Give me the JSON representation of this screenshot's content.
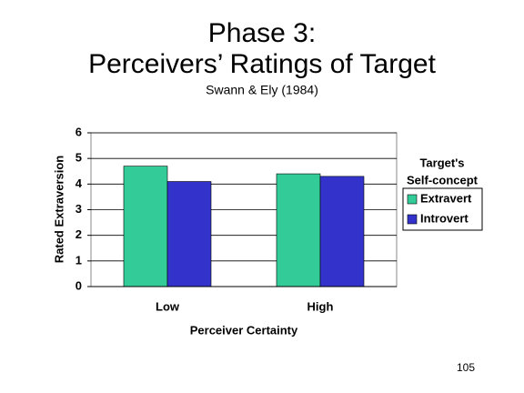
{
  "chart_data": {
    "type": "bar",
    "title": [
      "Phase 3:",
      "Perceivers’ Ratings of Target"
    ],
    "subtitle": "Swann & Ely (1984)",
    "x_label": "Perceiver Certainty",
    "y_label": "Rated Extraversion",
    "categories": [
      "Low",
      "High"
    ],
    "series": [
      {
        "name": "Extravert",
        "color": "#33cc99",
        "values": [
          4.7,
          4.4
        ]
      },
      {
        "name": "Introvert",
        "color": "#3333cc",
        "values": [
          4.1,
          4.3
        ]
      }
    ],
    "ylim": [
      0,
      6
    ],
    "yticks": [
      0,
      1,
      2,
      3,
      4,
      5,
      6
    ],
    "grid": true,
    "legend_title": [
      "Target's",
      "Self-concept"
    ],
    "legend_position": "right"
  },
  "page_number": "105"
}
